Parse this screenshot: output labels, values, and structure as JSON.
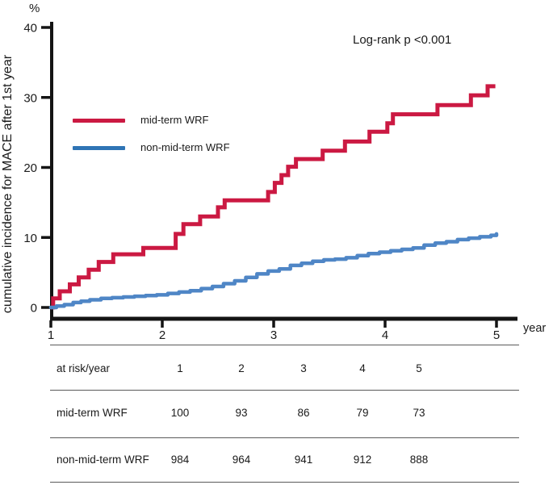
{
  "figure": {
    "percent_symbol": "%",
    "x_axis_unit": "year",
    "annotation": "Log-rank p <0.001",
    "y_axis_label": "cumulative incidence for MACE after 1st year"
  },
  "legend": [
    {
      "label": "mid-term WRF",
      "color": "#cb1942"
    },
    {
      "label": "non-mid-term WRF",
      "color": "#2f74b5"
    }
  ],
  "chart_data": {
    "type": "line",
    "subtype": "kaplan-meier-cumulative-incidence-steps",
    "title": "",
    "xlabel": "year",
    "ylabel": "cumulative incidence for MACE after 1st year",
    "annotation": "Log-rank p <0.001",
    "xlim": [
      1,
      5
    ],
    "ylim": [
      0,
      42
    ],
    "x_ticks": [
      1,
      2,
      3,
      4,
      5
    ],
    "y_ticks": [
      0,
      10,
      20,
      30,
      40
    ],
    "grid": false,
    "legend_position": "upper-left-inside",
    "axis_color": "#141414",
    "series": [
      {
        "name": "mid-term WRF",
        "color": "#cb1942",
        "end_year": 4.99,
        "points": [
          [
            1.0,
            0
          ],
          [
            1.02,
            1.3
          ],
          [
            1.08,
            2.3
          ],
          [
            1.17,
            3.3
          ],
          [
            1.25,
            4.3
          ],
          [
            1.34,
            5.4
          ],
          [
            1.43,
            6.5
          ],
          [
            1.56,
            7.6
          ],
          [
            1.83,
            8.5
          ],
          [
            2.12,
            10.5
          ],
          [
            2.19,
            11.9
          ],
          [
            2.34,
            13.0
          ],
          [
            2.5,
            14.3
          ],
          [
            2.56,
            15.3
          ],
          [
            2.95,
            16.5
          ],
          [
            3.01,
            17.8
          ],
          [
            3.07,
            18.9
          ],
          [
            3.13,
            20.1
          ],
          [
            3.2,
            21.2
          ],
          [
            3.44,
            22.4
          ],
          [
            3.64,
            23.7
          ],
          [
            3.86,
            25.1
          ],
          [
            4.02,
            26.3
          ],
          [
            4.07,
            27.6
          ],
          [
            4.47,
            28.9
          ],
          [
            4.77,
            30.3
          ],
          [
            4.92,
            31.6
          ]
        ]
      },
      {
        "name": "non-mid-term WRF",
        "color": "#4f86c6",
        "end_year": 5.0,
        "points": [
          [
            1.0,
            0
          ],
          [
            1.05,
            0.2
          ],
          [
            1.12,
            0.4
          ],
          [
            1.2,
            0.7
          ],
          [
            1.27,
            0.9
          ],
          [
            1.35,
            1.1
          ],
          [
            1.45,
            1.3
          ],
          [
            1.55,
            1.4
          ],
          [
            1.65,
            1.5
          ],
          [
            1.75,
            1.6
          ],
          [
            1.85,
            1.7
          ],
          [
            1.95,
            1.8
          ],
          [
            2.05,
            2.0
          ],
          [
            2.15,
            2.2
          ],
          [
            2.25,
            2.4
          ],
          [
            2.35,
            2.7
          ],
          [
            2.45,
            3.0
          ],
          [
            2.55,
            3.4
          ],
          [
            2.65,
            3.8
          ],
          [
            2.75,
            4.3
          ],
          [
            2.85,
            4.8
          ],
          [
            2.95,
            5.2
          ],
          [
            3.05,
            5.5
          ],
          [
            3.15,
            6.0
          ],
          [
            3.25,
            6.3
          ],
          [
            3.35,
            6.6
          ],
          [
            3.45,
            6.8
          ],
          [
            3.55,
            6.9
          ],
          [
            3.65,
            7.1
          ],
          [
            3.75,
            7.4
          ],
          [
            3.85,
            7.7
          ],
          [
            3.95,
            7.9
          ],
          [
            4.05,
            8.1
          ],
          [
            4.15,
            8.3
          ],
          [
            4.25,
            8.5
          ],
          [
            4.35,
            8.9
          ],
          [
            4.45,
            9.2
          ],
          [
            4.55,
            9.4
          ],
          [
            4.65,
            9.7
          ],
          [
            4.75,
            9.9
          ],
          [
            4.85,
            10.1
          ],
          [
            4.95,
            10.3
          ],
          [
            5.0,
            10.5
          ]
        ]
      }
    ]
  },
  "risk_table": {
    "rows": [
      {
        "label": "at risk/year",
        "cells": [
          "1",
          "2",
          "3",
          "4",
          "5"
        ]
      },
      {
        "label": "mid-term WRF",
        "cells": [
          "100",
          "93",
          "86",
          "79",
          "73"
        ]
      },
      {
        "label": "non-mid-term WRF",
        "cells": [
          "984",
          "964",
          "941",
          "912",
          "888"
        ]
      }
    ]
  }
}
